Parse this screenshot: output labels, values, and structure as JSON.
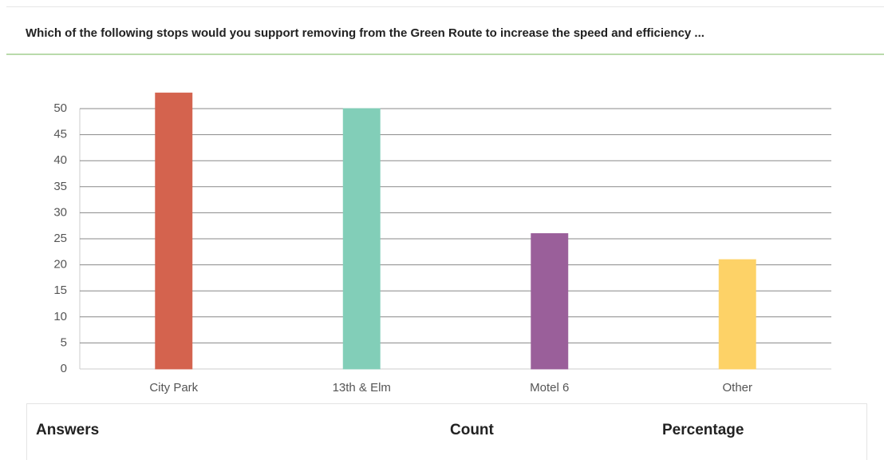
{
  "chart_data": {
    "type": "bar",
    "title": "Which of the following stops would you support removing from the Green Route to increase the speed and efficiency ...",
    "categories": [
      "City Park",
      "13th & Elm",
      "Motel 6",
      "Other"
    ],
    "values": [
      53,
      50,
      26,
      21
    ],
    "colors": [
      "#d4634e",
      "#82ceb8",
      "#9a5f9a",
      "#fdd267"
    ],
    "ylim": [
      0,
      55
    ],
    "yticks": [
      0,
      5,
      10,
      15,
      20,
      25,
      30,
      35,
      40,
      45,
      50
    ],
    "grid": true
  },
  "table": {
    "headers": [
      "Answers",
      "Count",
      "Percentage"
    ]
  }
}
